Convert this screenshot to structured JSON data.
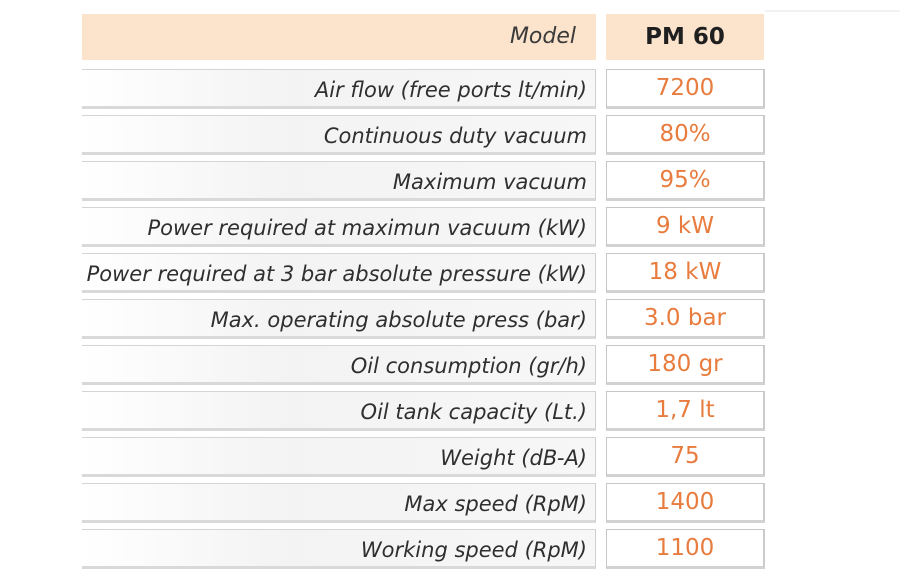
{
  "header": {
    "label": "Model",
    "value": "PM 60"
  },
  "rows": [
    {
      "label": "Air flow (free ports lt/min)",
      "value": "7200"
    },
    {
      "label": "Continuous duty vacuum",
      "value": "80%"
    },
    {
      "label": "Maximum vacuum",
      "value": "95%"
    },
    {
      "label": "Power required at maximun vacuum (kW)",
      "value": "9 kW"
    },
    {
      "label": "Power required at 3 bar absolute pressure (kW)",
      "value": "18 kW"
    },
    {
      "label": "Max. operating absolute press (bar)",
      "value": "3.0 bar"
    },
    {
      "label": "Oil consumption (gr/h)",
      "value": "180 gr"
    },
    {
      "label": "Oil tank capacity (Lt.)",
      "value": "1,7 lt"
    },
    {
      "label": "Weight (dB-A)",
      "value": "75"
    },
    {
      "label": "Max speed (RpM)",
      "value": "1400"
    },
    {
      "label": "Working speed (RpM)",
      "value": "1100"
    }
  ],
  "colors": {
    "header_background": "#fbe3cc",
    "value_text": "#e87c3e",
    "label_text": "#2f2f2f"
  }
}
